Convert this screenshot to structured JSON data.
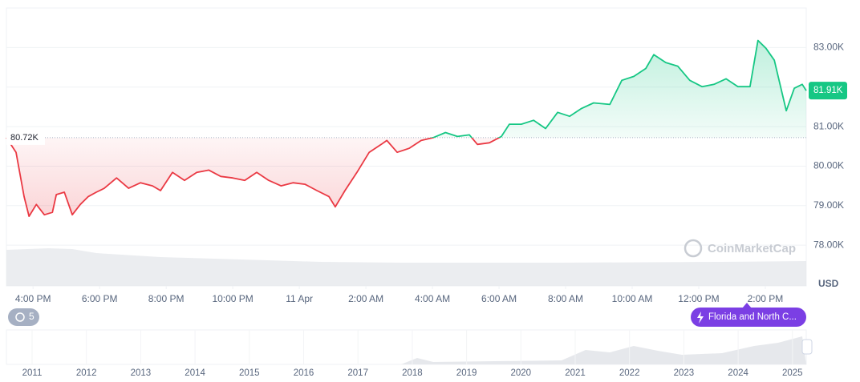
{
  "chart_data": {
    "type": "line",
    "x": [
      15.2,
      15.49,
      15.73,
      15.88,
      16.1,
      16.34,
      16.58,
      16.7,
      16.94,
      17.18,
      17.42,
      17.66,
      17.9,
      18.14,
      18.51,
      18.87,
      19.23,
      19.59,
      19.83,
      20.19,
      20.55,
      20.92,
      21.28,
      21.64,
      22.0,
      22.36,
      22.72,
      23.08,
      23.45,
      23.81,
      24.17,
      24.53,
      24.89,
      25.08,
      25.37,
      25.73,
      26.1,
      26.46,
      26.63,
      26.94,
      27.3,
      27.66,
      28.02,
      28.39,
      28.75,
      29.11,
      29.35,
      29.71,
      30.07,
      30.31,
      30.67,
      31.04,
      31.4,
      31.76,
      32.12,
      32.48,
      32.84,
      33.33,
      33.69,
      34.05,
      34.41,
      34.65,
      35.01,
      35.37,
      35.73,
      36.1,
      36.46,
      36.82,
      37.18,
      37.54,
      37.78,
      38.02,
      38.27,
      38.63,
      38.87,
      39.11,
      39.23
    ],
    "series": [
      {
        "values": [
          80720,
          80350,
          79230,
          78730,
          79030,
          78770,
          78830,
          79280,
          79340,
          78770,
          79030,
          79230,
          79340,
          79440,
          79700,
          79440,
          79580,
          79500,
          79380,
          79840,
          79640,
          79840,
          79900,
          79740,
          79700,
          79640,
          79840,
          79640,
          79500,
          79580,
          79540,
          79380,
          79230,
          78970,
          79380,
          79840,
          80350,
          80550,
          80650,
          80350,
          80450,
          80650,
          80720,
          80850,
          80750,
          80790,
          80550,
          80590,
          80750,
          81060,
          81060,
          81160,
          80950,
          81360,
          81260,
          81460,
          81600,
          81560,
          82170,
          82270,
          82470,
          82820,
          82620,
          82530,
          82170,
          82010,
          82070,
          82210,
          82010,
          82010,
          83180,
          82980,
          82680,
          81400,
          81970,
          82070,
          81910
        ]
      }
    ],
    "up_color": "#16c784",
    "down_color": "#ea3943",
    "baseline": {
      "value": 80720,
      "label": "80.72K"
    },
    "current": {
      "value": 81910,
      "label": "81.91K"
    },
    "xlim": [
      15.2,
      39.23
    ],
    "xticks": [
      {
        "value": 16,
        "label": "4:00 PM"
      },
      {
        "value": 18,
        "label": "6:00 PM"
      },
      {
        "value": 20,
        "label": "8:00 PM"
      },
      {
        "value": 22,
        "label": "10:00 PM"
      },
      {
        "value": 24,
        "label": "11 Apr"
      },
      {
        "value": 26,
        "label": "2:00 AM"
      },
      {
        "value": 28,
        "label": "4:00 AM"
      },
      {
        "value": 30,
        "label": "6:00 AM"
      },
      {
        "value": 32,
        "label": "8:00 AM"
      },
      {
        "value": 34,
        "label": "10:00 AM"
      },
      {
        "value": 36,
        "label": "12:00 PM"
      },
      {
        "value": 38,
        "label": "2:00 PM"
      }
    ],
    "ylim": [
      76970,
      84000
    ],
    "yticks": [
      {
        "value": 78000,
        "label": "78.00K"
      },
      {
        "value": 79000,
        "label": "79.00K"
      },
      {
        "value": 80000,
        "label": "80.00K"
      },
      {
        "value": 81000,
        "label": "81.00K"
      },
      {
        "value": 82000,
        "label": "82.00K"
      },
      {
        "value": 83000,
        "label": "83.00K"
      }
    ],
    "grid": true,
    "currency": "USD",
    "watermark": "CoinMarketCap",
    "history_badge": "5",
    "event_badge": "Florida and North C...",
    "navigator_years": [
      "2011",
      "2012",
      "2013",
      "2014",
      "2015",
      "2016",
      "2017",
      "2018",
      "2019",
      "2020",
      "2021",
      "2022",
      "2023",
      "2024",
      "2025"
    ]
  }
}
